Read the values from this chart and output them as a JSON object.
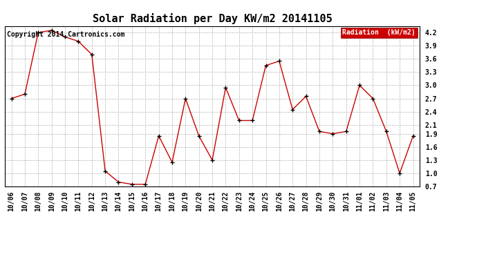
{
  "title": "Solar Radiation per Day KW/m2 20141105",
  "copyright": "Copyright 2014 Cartronics.com",
  "legend_label": "Radiation  (kW/m2)",
  "x_labels": [
    "10/06",
    "10/07",
    "10/08",
    "10/09",
    "10/10",
    "10/11",
    "10/12",
    "10/13",
    "10/14",
    "10/15",
    "10/16",
    "10/17",
    "10/18",
    "10/19",
    "10/20",
    "10/21",
    "10/22",
    "10/23",
    "10/24",
    "10/25",
    "10/26",
    "10/27",
    "10/28",
    "10/29",
    "10/30",
    "10/31",
    "11/01",
    "11/02",
    "11/03",
    "11/04",
    "11/05"
  ],
  "y_values": [
    2.7,
    2.8,
    4.2,
    4.25,
    4.1,
    4.0,
    3.7,
    1.05,
    0.8,
    0.75,
    0.75,
    1.85,
    1.25,
    2.7,
    1.85,
    1.3,
    2.95,
    2.2,
    2.2,
    3.45,
    3.55,
    2.45,
    2.75,
    1.95,
    1.9,
    1.95,
    3.0,
    2.7,
    1.95,
    1.0,
    1.85
  ],
  "ylim": [
    0.7,
    4.35
  ],
  "yticks": [
    0.7,
    1.0,
    1.3,
    1.6,
    1.9,
    2.1,
    2.4,
    2.7,
    3.0,
    3.3,
    3.6,
    3.9,
    4.2
  ],
  "line_color": "#cc0000",
  "marker_color": "#000000",
  "bg_color": "#ffffff",
  "grid_color": "#b0b0b0",
  "legend_bg": "#cc0000",
  "legend_text_color": "#ffffff",
  "title_fontsize": 11,
  "copyright_fontsize": 7,
  "tick_fontsize": 7,
  "legend_fontsize": 7
}
